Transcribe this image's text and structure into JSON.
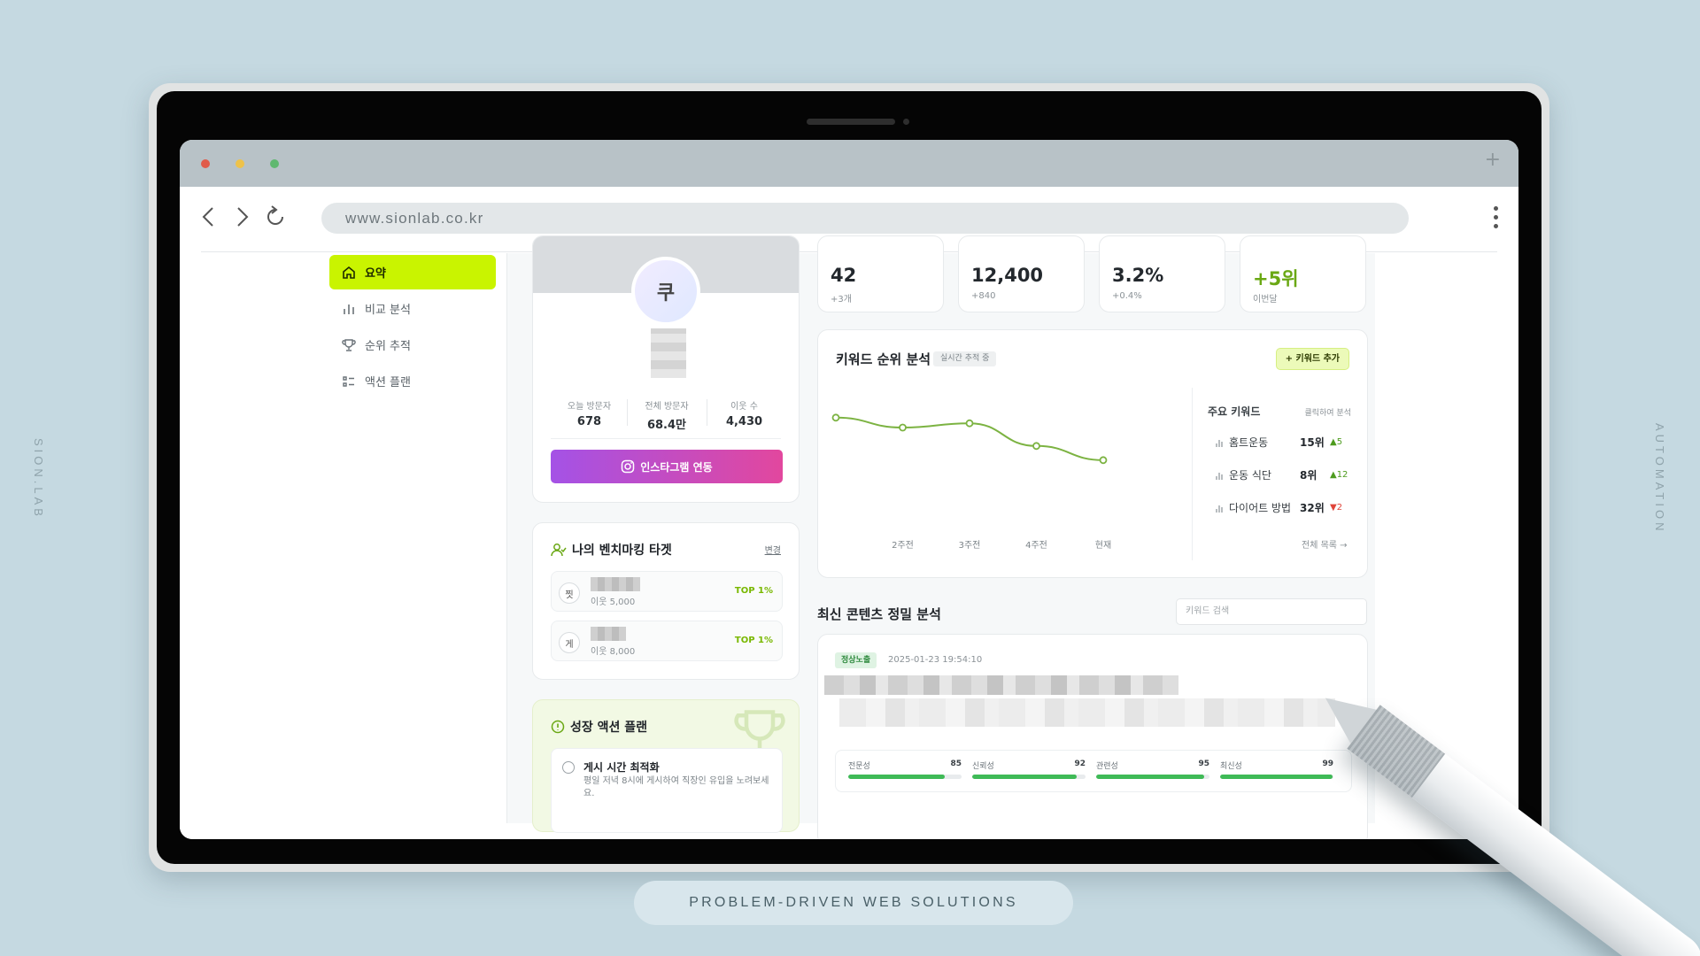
{
  "decor": {
    "left_vertical": "SION.LAB",
    "right_vertical": "AUTOMATION",
    "tagline": "PROBLEM-DRIVEN WEB SOLUTIONS"
  },
  "browser": {
    "url": "www.sionlab.co.kr",
    "newtab": "+"
  },
  "sidebar": {
    "items": [
      {
        "label": "요약",
        "icon": "home-icon",
        "active": true
      },
      {
        "label": "비교 분석",
        "icon": "bar-chart-icon",
        "active": false
      },
      {
        "label": "순위 추적",
        "icon": "trophy-icon",
        "active": false
      },
      {
        "label": "액션 플랜",
        "icon": "checklist-icon",
        "active": false
      }
    ]
  },
  "profile": {
    "avatar_initial": "쿠",
    "stats": [
      {
        "label": "오늘 방문자",
        "value": "678"
      },
      {
        "label": "전체 방문자",
        "value": "68.4만"
      },
      {
        "label": "이웃 수",
        "value": "4,430"
      }
    ],
    "connect_button": "인스타그램 연동"
  },
  "benchmark": {
    "title": "나의 벤치마킹 타겟",
    "change": "변경",
    "items": [
      {
        "badge": "찟",
        "sub": "이웃 5,000",
        "rank": "TOP 1%"
      },
      {
        "badge": "게",
        "sub": "이웃 8,000",
        "rank": "TOP 1%"
      }
    ]
  },
  "action_plan": {
    "title": "성장 액션 플랜",
    "item_title": "게시 시간 최적화",
    "item_desc": "평일 저녁 8시에 게시하여 직장인 유입을 노려보세요."
  },
  "metrics": [
    {
      "value": "42",
      "sub": "+3개"
    },
    {
      "value": "12,400",
      "sub": "+840"
    },
    {
      "value": "3.2%",
      "sub": "+0.4%"
    },
    {
      "value": "+5위",
      "sub": "이번달"
    }
  ],
  "keyword": {
    "title": "키워드 순위 분석",
    "tag": "실시간 추적 중",
    "add_button": "+ 키워드 추가",
    "list_title": "주요 키워드",
    "list_hint": "클릭하여 분석",
    "items": [
      {
        "name": "홈트운동",
        "rank": "15위",
        "change": "▲5",
        "dir": "up"
      },
      {
        "name": "운동 식단",
        "rank": "8위",
        "change": "▲12",
        "dir": "up"
      },
      {
        "name": "다이어트 방법",
        "rank": "32위",
        "change": "▼2",
        "dir": "down"
      }
    ],
    "all_link": "전체 목록 →"
  },
  "chart_data": {
    "type": "line",
    "x": [
      "",
      "2주전",
      "3주전",
      "4주전",
      "현재"
    ],
    "series": [
      {
        "values": [
          0.82,
          0.75,
          0.78,
          0.62,
          0.52
        ]
      }
    ],
    "ylim": [
      0,
      1
    ],
    "grid": false,
    "color": "#7cb342"
  },
  "recent": {
    "title": "최신 콘텐츠 정밀 분석",
    "search_placeholder": "키워드 검색",
    "badge": "정상노출",
    "date": "2025-01-23 19:54:10",
    "scores": [
      {
        "label": "전문성",
        "value": 85
      },
      {
        "label": "신뢰성",
        "value": 92
      },
      {
        "label": "관련성",
        "value": 95
      },
      {
        "label": "최신성",
        "value": 99
      }
    ]
  }
}
